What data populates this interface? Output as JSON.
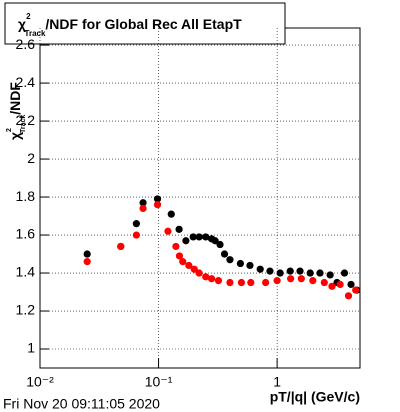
{
  "chart_data": {
    "type": "scatter",
    "title": {
      "symbol": "χ",
      "sup": "2",
      "sub": "Track",
      "text": "/NDF for Global Rec All EtapT"
    },
    "y_label": {
      "symbol": "χ",
      "sup": "2",
      "sub": "Track",
      "text": "/NDF"
    },
    "x_label": "pT/|q| (GeV/c)",
    "footer": "Fri Nov 20 09:11:05 2020",
    "xscale": "log",
    "grid": true,
    "xlim": [
      0.01,
      5
    ],
    "ylim": [
      0.9,
      2.69
    ],
    "xticks": [
      {
        "value": 0.01,
        "label": "10⁻²"
      },
      {
        "value": 0.1,
        "label": "10⁻¹"
      },
      1
    ],
    "yticks": [
      1,
      1.2,
      1.4,
      1.6,
      1.8,
      2,
      2.2,
      2.4,
      2.6
    ],
    "series": [
      {
        "color": "#000000",
        "x": [
          0.025,
          0.048,
          0.065,
          0.074,
          0.098,
          0.128,
          0.149,
          0.17,
          0.196,
          0.22,
          0.25,
          0.28,
          0.3,
          0.33,
          0.36,
          0.4,
          0.49,
          0.59,
          0.72,
          0.87,
          1.06,
          1.29,
          1.56,
          1.9,
          2.3,
          2.8,
          3.2,
          3.7,
          4.2,
          4.7
        ],
        "values": [
          1.5,
          1.54,
          1.66,
          1.77,
          1.79,
          1.71,
          1.63,
          1.57,
          1.59,
          1.59,
          1.59,
          1.58,
          1.57,
          1.55,
          1.5,
          1.47,
          1.45,
          1.44,
          1.42,
          1.41,
          1.4,
          1.41,
          1.41,
          1.4,
          1.4,
          1.39,
          1.35,
          1.4,
          1.34,
          1.31
        ]
      },
      {
        "color": "#ff0000",
        "x": [
          0.025,
          0.048,
          0.065,
          0.074,
          0.098,
          0.12,
          0.14,
          0.15,
          0.16,
          0.18,
          0.2,
          0.22,
          0.25,
          0.28,
          0.32,
          0.4,
          0.5,
          0.6,
          0.8,
          1.0,
          1.3,
          1.6,
          2.0,
          2.5,
          2.9,
          3.4,
          4.0,
          4.6
        ],
        "values": [
          1.46,
          1.54,
          1.6,
          1.74,
          1.76,
          1.62,
          1.54,
          1.49,
          1.46,
          1.44,
          1.42,
          1.4,
          1.38,
          1.37,
          1.36,
          1.35,
          1.35,
          1.35,
          1.35,
          1.36,
          1.37,
          1.37,
          1.36,
          1.35,
          1.33,
          1.34,
          1.28,
          1.31
        ]
      }
    ]
  }
}
